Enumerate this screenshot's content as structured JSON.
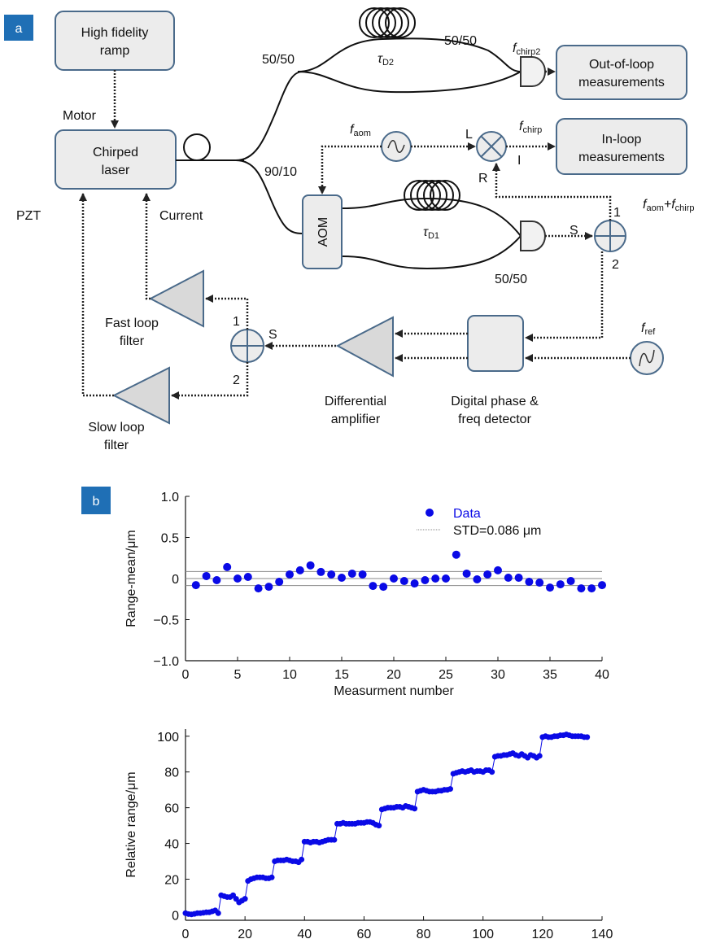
{
  "diagram": {
    "panel_label": "a",
    "high_fidelity_ramp": [
      "High fidelity",
      "ramp"
    ],
    "motor": "Motor",
    "chirped_laser": [
      "Chirped",
      "laser"
    ],
    "pzt": "PZT",
    "current": "Current",
    "splitters": [
      "50/50",
      "50/50",
      "90/10",
      "50/50"
    ],
    "tau_d2": {
      "text": "τ",
      "sub": "D2"
    },
    "tau_d1": {
      "text": "τ",
      "sub": "D1"
    },
    "f_chirp2": {
      "text": "f",
      "sub": "chirp2"
    },
    "out_of_loop": [
      "Out-of-loop",
      "measurements"
    ],
    "f_aom": {
      "text": "f",
      "sub": "aom"
    },
    "mixer_ports": [
      "L",
      "R",
      "I"
    ],
    "f_chirp": {
      "text": "f",
      "sub": "chirp"
    },
    "in_loop": [
      "In-loop",
      "measurements"
    ],
    "aom": "AOM",
    "combiner_right": {
      "sign": "S",
      "inputs": [
        "1",
        "2"
      ]
    },
    "combiner_left": {
      "sign": "S",
      "inputs": [
        "1",
        "2"
      ]
    },
    "f_sum": [
      {
        "text": "f",
        "sub": "aom"
      },
      {
        "text": "+f",
        "sub": "chirp"
      }
    ],
    "f_ref": {
      "text": "f",
      "sub": "ref"
    },
    "fast_loop_filter": [
      "Fast loop",
      "filter"
    ],
    "slow_loop_filter": [
      "Slow loop",
      "filter"
    ],
    "differential_amplifier": [
      "Differential",
      "amplifier"
    ],
    "phase_detector": [
      "Digital phase &",
      "freq detector"
    ]
  },
  "chart_data": [
    {
      "type": "scatter",
      "panel_label": "b",
      "xlabel": "Measurment number",
      "ylabel": "Range-mean/μm",
      "x": [
        1,
        2,
        3,
        4,
        5,
        6,
        7,
        8,
        9,
        10,
        11,
        12,
        13,
        14,
        15,
        16,
        17,
        18,
        19,
        20,
        21,
        22,
        23,
        24,
        25,
        26,
        27,
        28,
        29,
        30,
        31,
        32,
        33,
        34,
        35,
        36,
        37,
        38,
        39,
        40
      ],
      "series": [
        {
          "name": "Data",
          "color": "#0a0ae6",
          "values": [
            -0.08,
            0.03,
            -0.02,
            0.14,
            0.0,
            0.02,
            -0.12,
            -0.1,
            -0.04,
            0.05,
            0.1,
            0.16,
            0.08,
            0.05,
            0.01,
            0.06,
            0.05,
            -0.09,
            -0.1,
            0.0,
            -0.03,
            -0.06,
            -0.02,
            0.0,
            0.0,
            0.29,
            0.06,
            -0.01,
            0.05,
            0.1,
            0.01,
            0.01,
            -0.04,
            -0.05,
            -0.11,
            -0.07,
            -0.03,
            -0.12,
            -0.12,
            -0.08
          ]
        }
      ],
      "reference_lines": {
        "name": "STD=0.086 μm",
        "color": "#8a8a8a",
        "values": [
          -0.086,
          0,
          0.086
        ]
      },
      "legend": "upper right",
      "xlim": [
        0,
        40
      ],
      "xticks": [
        0,
        5,
        10,
        15,
        20,
        25,
        30,
        35,
        40
      ],
      "ylim": [
        -1,
        1
      ],
      "yticks": [
        {
          "value": -1,
          "label": "−1.0"
        },
        {
          "value": -0.5,
          "label": "−0.5"
        },
        0,
        0.5,
        {
          "value": 1,
          "label": "1.0"
        }
      ]
    },
    {
      "type": "line",
      "xlabel": "Measurment number",
      "ylabel": "Relative range/μm",
      "x": [
        0,
        1,
        2,
        3,
        4,
        5,
        6,
        7,
        8,
        9,
        10,
        11,
        12,
        13,
        14,
        15,
        16,
        17,
        18,
        19,
        20,
        21,
        22,
        23,
        24,
        25,
        26,
        27,
        28,
        29,
        30,
        31,
        32,
        33,
        34,
        35,
        36,
        37,
        38,
        39,
        40,
        41,
        42,
        43,
        44,
        45,
        46,
        47,
        48,
        49,
        50,
        51,
        52,
        53,
        54,
        55,
        56,
        57,
        58,
        59,
        60,
        61,
        62,
        63,
        64,
        65,
        66,
        67,
        68,
        69,
        70,
        71,
        72,
        73,
        74,
        75,
        76,
        77,
        78,
        79,
        80,
        81,
        82,
        83,
        84,
        85,
        86,
        87,
        88,
        89,
        90,
        91,
        92,
        93,
        94,
        95,
        96,
        97,
        98,
        99,
        100,
        101,
        102,
        103,
        104,
        105,
        106,
        107,
        108,
        109,
        110,
        111,
        112,
        113,
        114,
        115,
        116,
        117,
        118,
        119,
        120,
        121,
        122,
        123,
        124,
        125,
        126,
        127,
        128,
        129,
        130,
        131,
        132,
        133,
        134,
        135
      ],
      "series": [
        {
          "color": "#0a0ae6",
          "values": [
            1,
            0.5,
            0.3,
            0.6,
            1,
            1,
            1.2,
            1.5,
            1.5,
            2,
            2.5,
            1,
            11,
            10.5,
            10,
            10,
            11,
            9,
            7,
            8,
            9,
            19,
            20,
            20.5,
            21,
            21,
            21,
            20.5,
            20.5,
            21,
            30,
            30.5,
            30.5,
            30.5,
            31,
            30.5,
            30,
            30,
            29.5,
            31,
            41,
            41,
            40.5,
            41,
            41,
            40.5,
            41,
            41.5,
            42,
            42,
            42,
            51,
            51,
            51.5,
            51,
            51,
            51,
            51,
            51.5,
            51.5,
            51.5,
            52,
            52,
            51.5,
            50.5,
            50,
            59,
            59.5,
            60,
            60,
            60,
            60.5,
            60.5,
            60,
            61,
            60.5,
            60,
            59.5,
            69,
            69.5,
            70,
            69.5,
            69,
            69,
            69,
            69.5,
            69.5,
            70,
            70,
            70.5,
            79,
            79.5,
            80,
            80.5,
            80,
            80.5,
            81,
            80,
            80.5,
            80.5,
            80,
            81,
            81,
            80,
            88.5,
            89,
            89,
            89.5,
            89.5,
            90,
            90.5,
            89.5,
            89,
            90,
            89,
            88,
            89.5,
            89,
            88,
            89,
            99.5,
            100,
            99.5,
            99.5,
            100,
            100,
            100.5,
            100.5,
            101,
            100.5,
            100,
            100,
            100,
            100,
            99.5,
            99.5
          ]
        }
      ],
      "xlim": [
        0,
        140
      ],
      "xticks": [
        0,
        20,
        40,
        60,
        80,
        100,
        120,
        140
      ],
      "ylim": [
        -3,
        104
      ],
      "yticks": [
        0,
        20,
        40,
        60,
        80,
        100
      ]
    }
  ]
}
